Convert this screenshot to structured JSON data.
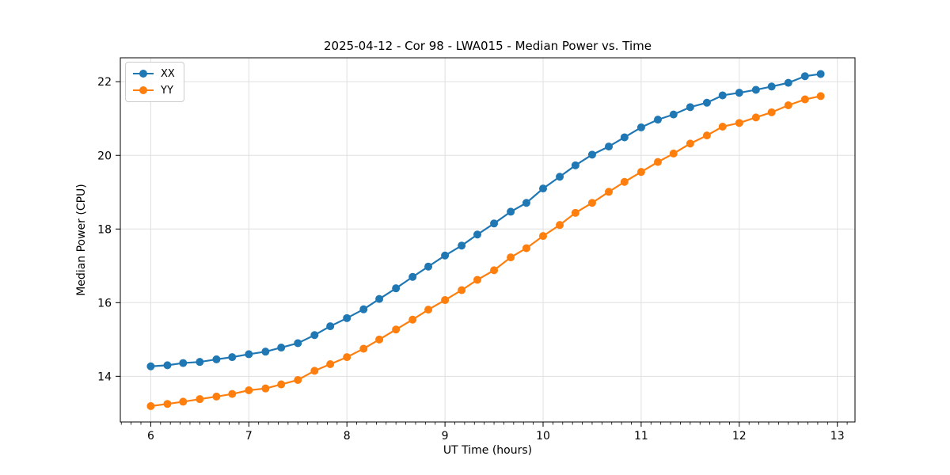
{
  "figure": {
    "title": "2025-04-12 - Cor 98 - LWA015 - Median Power vs. Time"
  },
  "chart_data": {
    "type": "line",
    "title": "2025-04-12 - Cor 98 - LWA015 - Median Power vs. Time",
    "xlabel": "UT Time (hours)",
    "ylabel": "Median Power (CPU)",
    "xlim": [
      5.69,
      13.18
    ],
    "ylim": [
      12.76,
      22.65
    ],
    "xticks": [
      6,
      7,
      8,
      9,
      10,
      11,
      12,
      13
    ],
    "yticks": [
      14,
      16,
      18,
      20,
      22
    ],
    "minor_xtick_step": 0.1,
    "grid": true,
    "legend_position": "upper left",
    "x": [
      6,
      6.17,
      6.33,
      6.5,
      6.67,
      6.83,
      7,
      7.17,
      7.33,
      7.5,
      7.67,
      7.83,
      8,
      8.17,
      8.33,
      8.5,
      8.67,
      8.83,
      9,
      9.17,
      9.33,
      9.5,
      9.67,
      9.83,
      10,
      10.17,
      10.33,
      10.5,
      10.67,
      10.83,
      11,
      11.17,
      11.33,
      11.5,
      11.67,
      11.83,
      12,
      12.17,
      12.33,
      12.5,
      12.67,
      12.83
    ],
    "series": [
      {
        "name": "XX",
        "color": "#1f77b4",
        "marker": "circle",
        "values": [
          14.27,
          14.3,
          14.36,
          14.39,
          14.46,
          14.52,
          14.6,
          14.67,
          14.78,
          14.9,
          15.12,
          15.36,
          15.58,
          15.82,
          16.1,
          16.39,
          16.7,
          16.98,
          17.28,
          17.55,
          17.85,
          18.15,
          18.47,
          18.71,
          19.1,
          19.42,
          19.73,
          20.02,
          20.24,
          20.49,
          20.76,
          20.97,
          21.11,
          21.31,
          21.43,
          21.63,
          21.7,
          21.78,
          21.87,
          21.97,
          22.15,
          22.21
        ]
      },
      {
        "name": "YY",
        "color": "#ff7f0e",
        "marker": "circle",
        "values": [
          13.19,
          13.25,
          13.31,
          13.38,
          13.45,
          13.52,
          13.62,
          13.67,
          13.78,
          13.9,
          14.15,
          14.33,
          14.52,
          14.75,
          15.0,
          15.27,
          15.54,
          15.81,
          16.07,
          16.34,
          16.62,
          16.88,
          17.23,
          17.48,
          17.81,
          18.11,
          18.44,
          18.71,
          19.01,
          19.28,
          19.55,
          19.82,
          20.05,
          20.32,
          20.54,
          20.78,
          20.88,
          21.03,
          21.17,
          21.36,
          21.52,
          21.61
        ]
      }
    ]
  },
  "colors": {
    "background": "#ffffff",
    "grid": "#e0e0e0",
    "spine": "#000000",
    "tick": "#000000",
    "text": "#000000",
    "legend_border": "#cccccc"
  }
}
